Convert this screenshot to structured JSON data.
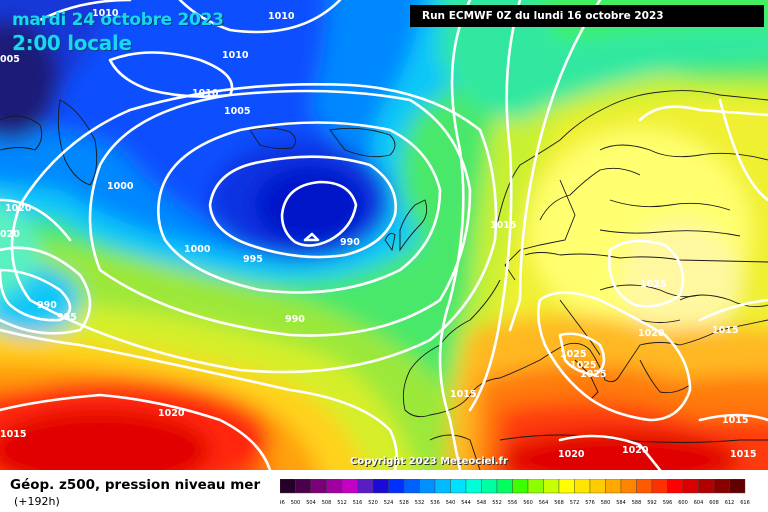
{
  "header": {
    "date": "mardi 24 octobre 2023",
    "time": "2:00 locale",
    "run": "Run ECMWF 0Z du lundi 16 octobre 2023"
  },
  "copyright": "Copyright 2023 Meteociel.fr",
  "footer": {
    "title": "Géop. z500, pression niveau mer",
    "subtitle": "(+192h)"
  },
  "scale": {
    "ticks": [
      "496",
      "500",
      "504",
      "508",
      "512",
      "516",
      "520",
      "524",
      "528",
      "532",
      "536",
      "540",
      "544",
      "548",
      "552",
      "556",
      "560",
      "564",
      "568",
      "572",
      "576",
      "580",
      "584",
      "588",
      "592",
      "596",
      "600",
      "604",
      "608",
      "612",
      "616"
    ],
    "colors": [
      "#260026",
      "#4b004b",
      "#7a007a",
      "#a100a1",
      "#c400c4",
      "#5a1cc4",
      "#1a0ad8",
      "#0030ff",
      "#0060ff",
      "#0090ff",
      "#00bcff",
      "#00e0ff",
      "#00ffd8",
      "#00ffa0",
      "#00ff60",
      "#3cff00",
      "#8cff00",
      "#c8ff00",
      "#ffff00",
      "#ffe600",
      "#ffcc00",
      "#ffa800",
      "#ff8400",
      "#ff5a00",
      "#ff3000",
      "#ff0000",
      "#d80000",
      "#b00000",
      "#880000",
      "#600000"
    ]
  },
  "pressure_labels": [
    {
      "text": "1010",
      "id": "1010-a"
    },
    {
      "text": "1010",
      "id": "1010-b"
    },
    {
      "text": "1010",
      "id": "1010-c"
    },
    {
      "text": "1010",
      "id": "1010-d"
    },
    {
      "text": "1005",
      "id": "1005-a"
    },
    {
      "text": "005",
      "id": "1005-edge"
    },
    {
      "text": "1000",
      "id": "1000-a"
    },
    {
      "text": "1000",
      "id": "1000-b"
    },
    {
      "text": "1020",
      "id": "1020-a"
    },
    {
      "text": "020",
      "id": "1020-edge"
    },
    {
      "text": "990",
      "id": "990-a"
    },
    {
      "text": "995",
      "id": "995-a"
    },
    {
      "text": "990",
      "id": "990-b"
    },
    {
      "text": "995",
      "id": "995-b"
    },
    {
      "text": "990",
      "id": "990-c"
    },
    {
      "text": "1015",
      "id": "1015-a"
    },
    {
      "text": "1025",
      "id": "1025-a"
    },
    {
      "text": "1020",
      "id": "1020-b"
    },
    {
      "text": "1015",
      "id": "1015-b"
    },
    {
      "text": "1025",
      "id": "1025-b"
    },
    {
      "text": "1025",
      "id": "1025-c"
    },
    {
      "text": "1025",
      "id": "1025-d"
    },
    {
      "text": "1015",
      "id": "1015-c"
    },
    {
      "text": "1020",
      "id": "1020-c"
    },
    {
      "text": "1015",
      "id": "1015-d"
    },
    {
      "text": "1015",
      "id": "1015-e"
    },
    {
      "text": "1020",
      "id": "1020-d"
    },
    {
      "text": "1020",
      "id": "1020-e"
    },
    {
      "text": "1015",
      "id": "1015-f"
    }
  ]
}
